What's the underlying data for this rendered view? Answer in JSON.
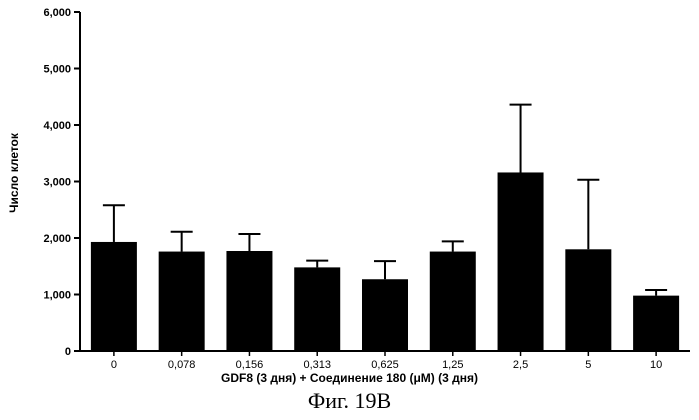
{
  "chart_data": {
    "type": "bar",
    "categories": [
      "0",
      "0,078",
      "0,156",
      "0,313",
      "0,625",
      "1,25",
      "2,5",
      "5",
      "10"
    ],
    "values": [
      1930,
      1760,
      1770,
      1480,
      1270,
      1760,
      3160,
      1800,
      980
    ],
    "error_plus": [
      650,
      350,
      300,
      120,
      320,
      180,
      1200,
      1230,
      100
    ],
    "title": "",
    "xlabel": "GDF8 (3 дня)  + Соединение 180 (μM) (3 дня)",
    "ylabel": "Число клеток",
    "ylim": [
      0,
      6000
    ],
    "yticks": [
      0,
      1000,
      2000,
      3000,
      4000,
      5000,
      6000
    ],
    "ytick_labels": [
      "0",
      "1,000",
      "2,000",
      "3,000",
      "4,000",
      "5,000",
      "6,000"
    ],
    "grid": false,
    "bar_color": "#000000"
  },
  "caption": "Фиг. 19B"
}
